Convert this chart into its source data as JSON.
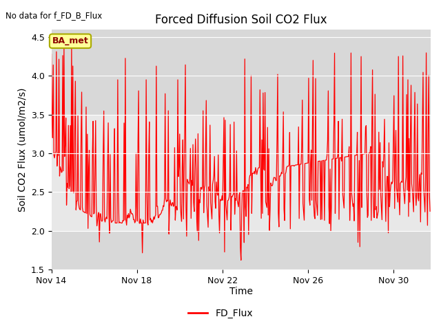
{
  "title": "Forced Diffusion Soil CO2 Flux",
  "ylabel": "Soil CO2 Flux (umol/m2/s)",
  "xlabel": "Time",
  "legend_label": "FD_Flux",
  "no_data_text": "No data for f_FD_B_Flux",
  "ba_met_label": "BA_met",
  "ylim": [
    1.5,
    4.6
  ],
  "yticks": [
    1.5,
    2.0,
    2.5,
    3.0,
    3.5,
    4.0,
    4.5
  ],
  "xtick_labels": [
    "Nov 14",
    "Nov 18",
    "Nov 22",
    "Nov 26",
    "Nov 30"
  ],
  "line_color": "#ff0000",
  "bg_color": "#ffffff",
  "plot_bg_dark": "#d8d8d8",
  "plot_bg_light": "#e8e8e8",
  "seed": 42,
  "n_points": 600
}
